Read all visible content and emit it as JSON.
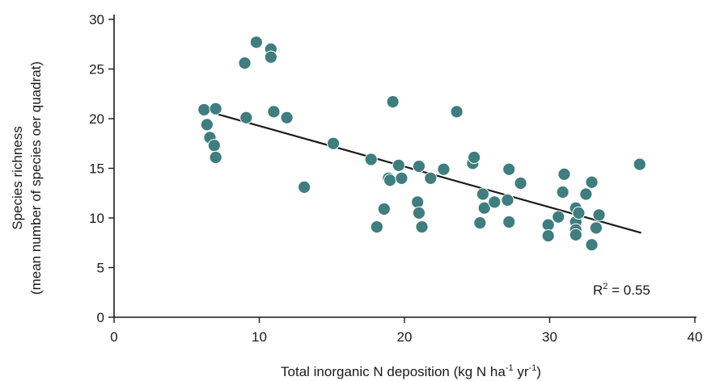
{
  "chart_data": {
    "type": "scatter",
    "xlabel": {
      "prefix": "Total inorganic N deposition (kg N ha",
      "sup1": "-1",
      "mid": " yr",
      "sup2": "-1",
      "suffix": ")"
    },
    "ylabel_line1": "Species richness",
    "ylabel_line2": "(mean number of species oer quadrat)",
    "xlim": [
      0,
      40
    ],
    "ylim": [
      0,
      30
    ],
    "xticks": [
      0,
      10,
      20,
      30,
      40
    ],
    "yticks": [
      0,
      5,
      10,
      15,
      20,
      25,
      30
    ],
    "annotation": {
      "prefix": "R",
      "sup": "2",
      "suffix": " = 0.55"
    },
    "trendline": {
      "x1": 7.0,
      "y1": 20.5,
      "x2": 36.3,
      "y2": 8.5
    },
    "colors": {
      "marker": "#3f7d7e",
      "marker_stroke": "#ffffff",
      "line": "#1a1a1a",
      "axis": "#1a1a1a"
    },
    "points": [
      {
        "x": 6.2,
        "y": 20.9
      },
      {
        "x": 6.4,
        "y": 19.4
      },
      {
        "x": 6.6,
        "y": 18.1
      },
      {
        "x": 6.9,
        "y": 17.3
      },
      {
        "x": 7.0,
        "y": 16.1
      },
      {
        "x": 7.0,
        "y": 21.0
      },
      {
        "x": 9.0,
        "y": 25.6
      },
      {
        "x": 9.1,
        "y": 20.1
      },
      {
        "x": 9.8,
        "y": 27.7
      },
      {
        "x": 10.8,
        "y": 27.0
      },
      {
        "x": 10.8,
        "y": 26.2
      },
      {
        "x": 11.0,
        "y": 20.7
      },
      {
        "x": 11.9,
        "y": 20.1
      },
      {
        "x": 13.1,
        "y": 13.1
      },
      {
        "x": 15.1,
        "y": 17.5
      },
      {
        "x": 17.7,
        "y": 15.9
      },
      {
        "x": 18.1,
        "y": 9.1
      },
      {
        "x": 18.6,
        "y": 10.9
      },
      {
        "x": 18.9,
        "y": 14.0
      },
      {
        "x": 19.0,
        "y": 13.8
      },
      {
        "x": 19.2,
        "y": 21.7
      },
      {
        "x": 19.6,
        "y": 15.3
      },
      {
        "x": 19.8,
        "y": 14.0
      },
      {
        "x": 20.9,
        "y": 11.6
      },
      {
        "x": 21.0,
        "y": 10.5
      },
      {
        "x": 21.0,
        "y": 15.2
      },
      {
        "x": 21.2,
        "y": 9.1
      },
      {
        "x": 21.8,
        "y": 14.0
      },
      {
        "x": 22.7,
        "y": 14.9
      },
      {
        "x": 23.6,
        "y": 20.7
      },
      {
        "x": 24.7,
        "y": 15.5
      },
      {
        "x": 24.8,
        "y": 16.1
      },
      {
        "x": 25.2,
        "y": 9.5
      },
      {
        "x": 25.4,
        "y": 12.4
      },
      {
        "x": 25.5,
        "y": 11.0
      },
      {
        "x": 26.2,
        "y": 11.6
      },
      {
        "x": 27.1,
        "y": 11.8
      },
      {
        "x": 27.2,
        "y": 9.6
      },
      {
        "x": 27.2,
        "y": 14.9
      },
      {
        "x": 28.0,
        "y": 13.5
      },
      {
        "x": 29.9,
        "y": 9.3
      },
      {
        "x": 29.9,
        "y": 8.2
      },
      {
        "x": 30.6,
        "y": 10.1
      },
      {
        "x": 30.9,
        "y": 12.6
      },
      {
        "x": 31.0,
        "y": 14.4
      },
      {
        "x": 31.8,
        "y": 11.0
      },
      {
        "x": 31.8,
        "y": 9.6
      },
      {
        "x": 31.8,
        "y": 8.8
      },
      {
        "x": 31.8,
        "y": 8.3
      },
      {
        "x": 32.0,
        "y": 10.5
      },
      {
        "x": 32.5,
        "y": 12.4
      },
      {
        "x": 32.9,
        "y": 13.6
      },
      {
        "x": 32.9,
        "y": 7.3
      },
      {
        "x": 33.2,
        "y": 9.0
      },
      {
        "x": 33.4,
        "y": 10.3
      },
      {
        "x": 36.2,
        "y": 15.4
      }
    ]
  }
}
